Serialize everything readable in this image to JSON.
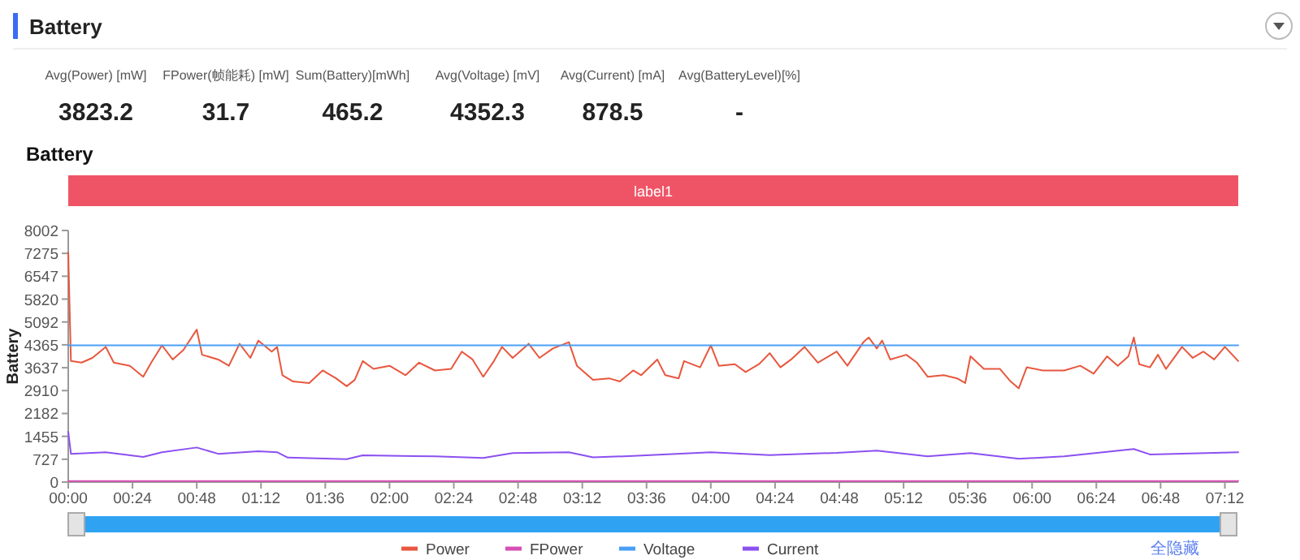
{
  "chart_data": [
    {
      "type": "other",
      "title": "Battery",
      "annotations": [
        "Avg(Power) [mW]",
        "3823.2",
        "FPower(帧能耗) [mW]",
        "31.7",
        "Sum(Battery)[mWh]",
        "465.2",
        "Avg(Voltage) [mV]",
        "4352.3",
        "Avg(Current) [mA]",
        "878.5",
        "Avg(BatteryLevel)[%]",
        "-"
      ]
    },
    {
      "type": "line",
      "title": "Battery",
      "ylabel": "Battery",
      "xlim": [
        0,
        437
      ],
      "ylim": [
        0,
        8002
      ],
      "xticks": [
        {
          "value": 0,
          "label": "00:00"
        },
        {
          "value": 24,
          "label": "00:24"
        },
        {
          "value": 48,
          "label": "00:48"
        },
        {
          "value": 72,
          "label": "01:12"
        },
        {
          "value": 96,
          "label": "01:36"
        },
        {
          "value": 120,
          "label": "02:00"
        },
        {
          "value": 144,
          "label": "02:24"
        },
        {
          "value": 168,
          "label": "02:48"
        },
        {
          "value": 192,
          "label": "03:12"
        },
        {
          "value": 216,
          "label": "03:36"
        },
        {
          "value": 240,
          "label": "04:00"
        },
        {
          "value": 264,
          "label": "04:24"
        },
        {
          "value": 288,
          "label": "04:48"
        },
        {
          "value": 312,
          "label": "05:12"
        },
        {
          "value": 336,
          "label": "05:36"
        },
        {
          "value": 360,
          "label": "06:00"
        },
        {
          "value": 384,
          "label": "06:24"
        },
        {
          "value": 408,
          "label": "06:48"
        },
        {
          "value": 432,
          "label": "07:12"
        }
      ],
      "yticks": [
        0,
        727,
        1455,
        2182,
        2910,
        3637,
        4365,
        5092,
        5820,
        6547,
        7275,
        8002
      ],
      "legend": "bottom",
      "annotations": [
        "label1",
        "全隐藏"
      ],
      "series": [
        {
          "name": "Power",
          "color": "#e8573e",
          "x": [
            0,
            1,
            5,
            9,
            14,
            17,
            23,
            28,
            31,
            35,
            39,
            43,
            48,
            50,
            56,
            60,
            64,
            68,
            71,
            76,
            78,
            80,
            84,
            90,
            95,
            100,
            104,
            107,
            110,
            114,
            120,
            126,
            131,
            137,
            143,
            147,
            151,
            155,
            159,
            162,
            166,
            172,
            176,
            181,
            187,
            190,
            196,
            202,
            206,
            211,
            214,
            220,
            223,
            228,
            230,
            236,
            240,
            243,
            249,
            253,
            258,
            262,
            266,
            270,
            275,
            280,
            287,
            291,
            297,
            299,
            302,
            304,
            307,
            313,
            317,
            321,
            327,
            332,
            335,
            337,
            342,
            348,
            352,
            355,
            358,
            364,
            372,
            378,
            383,
            388,
            392,
            396,
            398,
            400,
            404,
            407,
            410,
            416,
            420,
            424,
            428,
            432,
            437
          ],
          "values": [
            7300,
            3850,
            3800,
            3950,
            4300,
            3800,
            3700,
            3350,
            3800,
            4350,
            3900,
            4200,
            4850,
            4050,
            3900,
            3700,
            4400,
            3950,
            4500,
            4150,
            4300,
            3400,
            3200,
            3150,
            3550,
            3300,
            3050,
            3250,
            3850,
            3600,
            3700,
            3400,
            3800,
            3550,
            3600,
            4150,
            3900,
            3350,
            3850,
            4300,
            3950,
            4400,
            3950,
            4250,
            4450,
            3700,
            3250,
            3300,
            3200,
            3550,
            3400,
            3900,
            3400,
            3300,
            3850,
            3650,
            4350,
            3700,
            3750,
            3500,
            3750,
            4100,
            3650,
            3900,
            4300,
            3800,
            4150,
            3700,
            4450,
            4600,
            4250,
            4500,
            3900,
            4050,
            3800,
            3350,
            3400,
            3300,
            3150,
            4000,
            3600,
            3600,
            3200,
            2980,
            3650,
            3550,
            3550,
            3700,
            3450,
            4000,
            3700,
            4000,
            4600,
            3750,
            3650,
            4050,
            3600,
            4300,
            3950,
            4150,
            3900,
            4300,
            3850
          ]
        },
        {
          "name": "FPower",
          "color": "#d64fb4",
          "x": [
            0,
            437
          ],
          "values": [
            30,
            30
          ]
        },
        {
          "name": "Voltage",
          "color": "#4a9ff5",
          "x": [
            0,
            437
          ],
          "values": [
            4350,
            4350
          ]
        },
        {
          "name": "Current",
          "color": "#8b50f0",
          "x": [
            0,
            1,
            14,
            28,
            35,
            48,
            56,
            71,
            78,
            82,
            104,
            110,
            137,
            155,
            166,
            187,
            196,
            211,
            240,
            262,
            287,
            302,
            321,
            337,
            355,
            372,
            398,
            404,
            437
          ],
          "values": [
            1600,
            900,
            950,
            800,
            950,
            1100,
            900,
            980,
            950,
            780,
            730,
            850,
            820,
            770,
            920,
            950,
            790,
            830,
            950,
            860,
            930,
            1000,
            820,
            920,
            740,
            820,
            1050,
            880,
            950
          ]
        }
      ]
    }
  ]
}
